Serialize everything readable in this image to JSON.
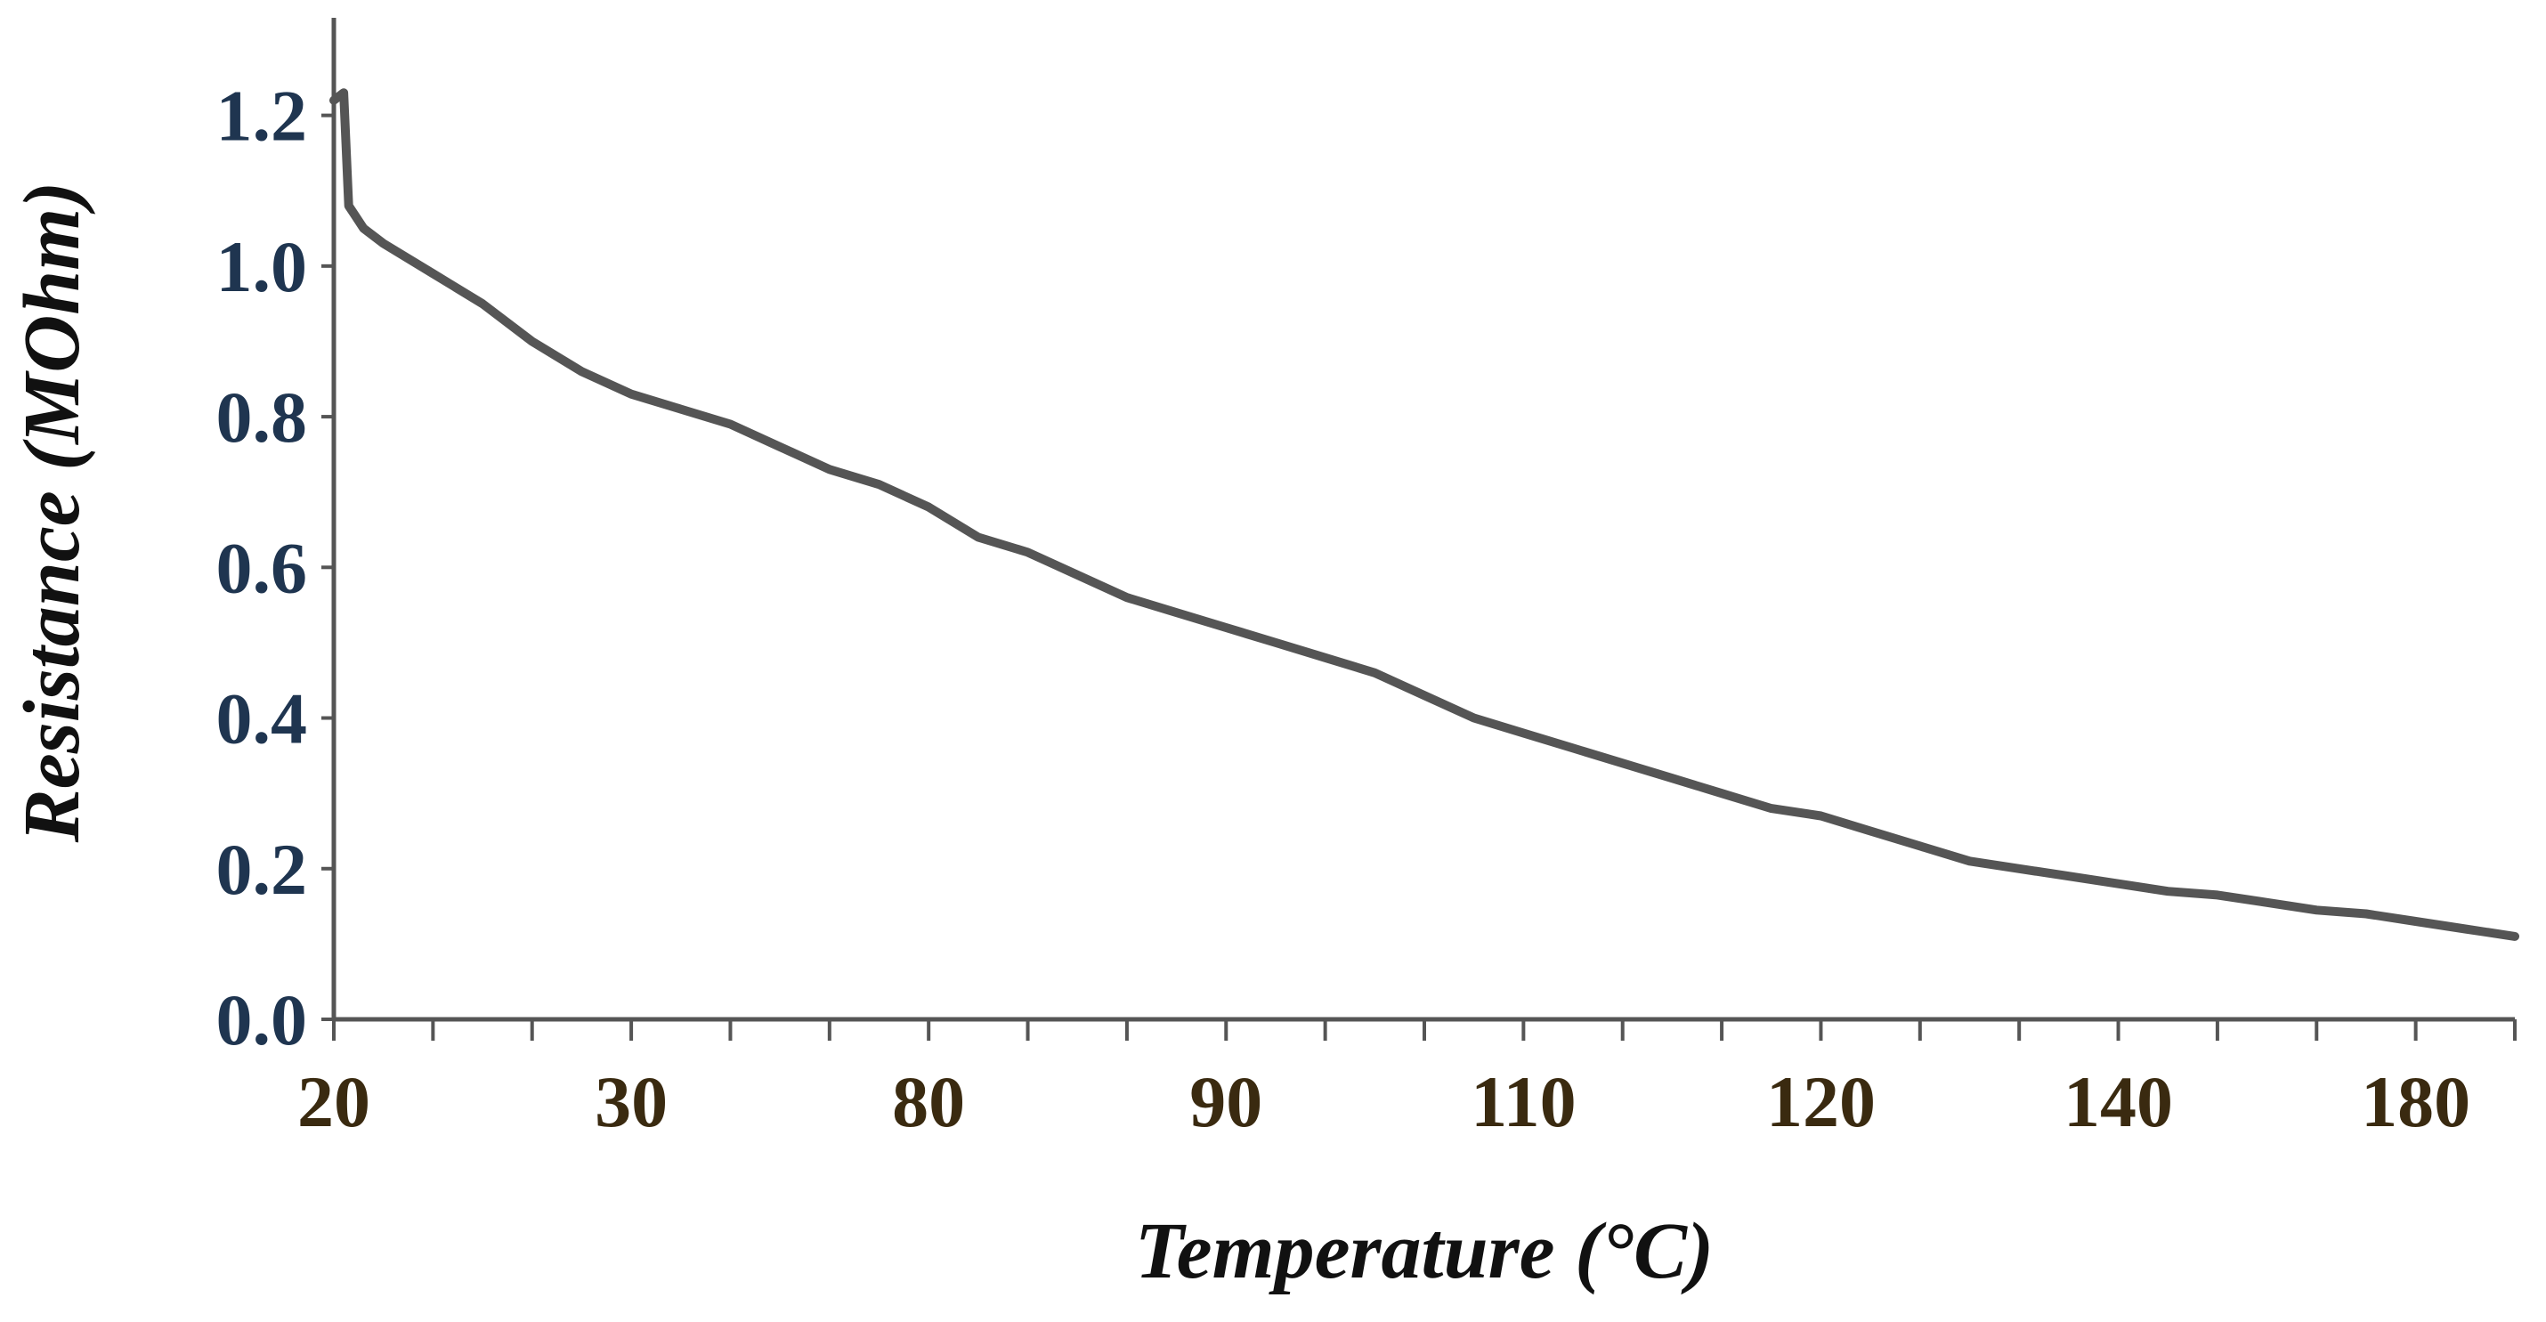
{
  "chart_data": {
    "type": "line",
    "title": "",
    "xlabel": "Temperature (°C)",
    "ylabel": "Resistance (MOhm)",
    "x_tick_labels": [
      "20",
      "30",
      "80",
      "90",
      "110",
      "120",
      "140",
      "180"
    ],
    "y_tick_labels": [
      "0.0",
      "0.2",
      "0.4",
      "0.6",
      "0.8",
      "1.0",
      "1.2"
    ],
    "ylim": [
      0,
      1.3
    ],
    "x_scale_note": "x axis is categorical-like: labelled ticks are evenly spaced on a 0–22 index scale; 8 labels at index 0,3,6,9,12,15,18,21",
    "xlim_index": [
      0,
      22
    ],
    "x_label_index": [
      0,
      3,
      6,
      9,
      12,
      15,
      18,
      21
    ],
    "grid": false,
    "series": [
      {
        "name": "Resistance",
        "color": "#555555",
        "x_index": [
          0.0,
          0.1,
          0.15,
          0.2,
          0.3,
          0.5,
          1.0,
          1.5,
          2.0,
          2.5,
          3.0,
          3.5,
          4.0,
          4.5,
          5.0,
          5.5,
          6.0,
          6.5,
          7.0,
          7.5,
          8.0,
          8.5,
          9.0,
          9.5,
          10.0,
          10.5,
          11.0,
          11.5,
          12.0,
          12.5,
          13.0,
          13.5,
          14.0,
          14.5,
          15.0,
          15.5,
          16.0,
          16.5,
          17.0,
          17.5,
          18.0,
          18.5,
          19.0,
          19.5,
          20.0,
          20.5,
          21.0,
          21.5,
          22.0
        ],
        "values": [
          1.22,
          1.23,
          1.08,
          1.07,
          1.05,
          1.03,
          0.99,
          0.95,
          0.9,
          0.86,
          0.83,
          0.81,
          0.79,
          0.76,
          0.73,
          0.71,
          0.68,
          0.64,
          0.62,
          0.59,
          0.56,
          0.54,
          0.52,
          0.5,
          0.48,
          0.46,
          0.43,
          0.4,
          0.38,
          0.36,
          0.34,
          0.32,
          0.3,
          0.28,
          0.27,
          0.25,
          0.23,
          0.21,
          0.2,
          0.19,
          0.18,
          0.17,
          0.165,
          0.155,
          0.145,
          0.14,
          0.13,
          0.12,
          0.11
        ]
      }
    ]
  }
}
